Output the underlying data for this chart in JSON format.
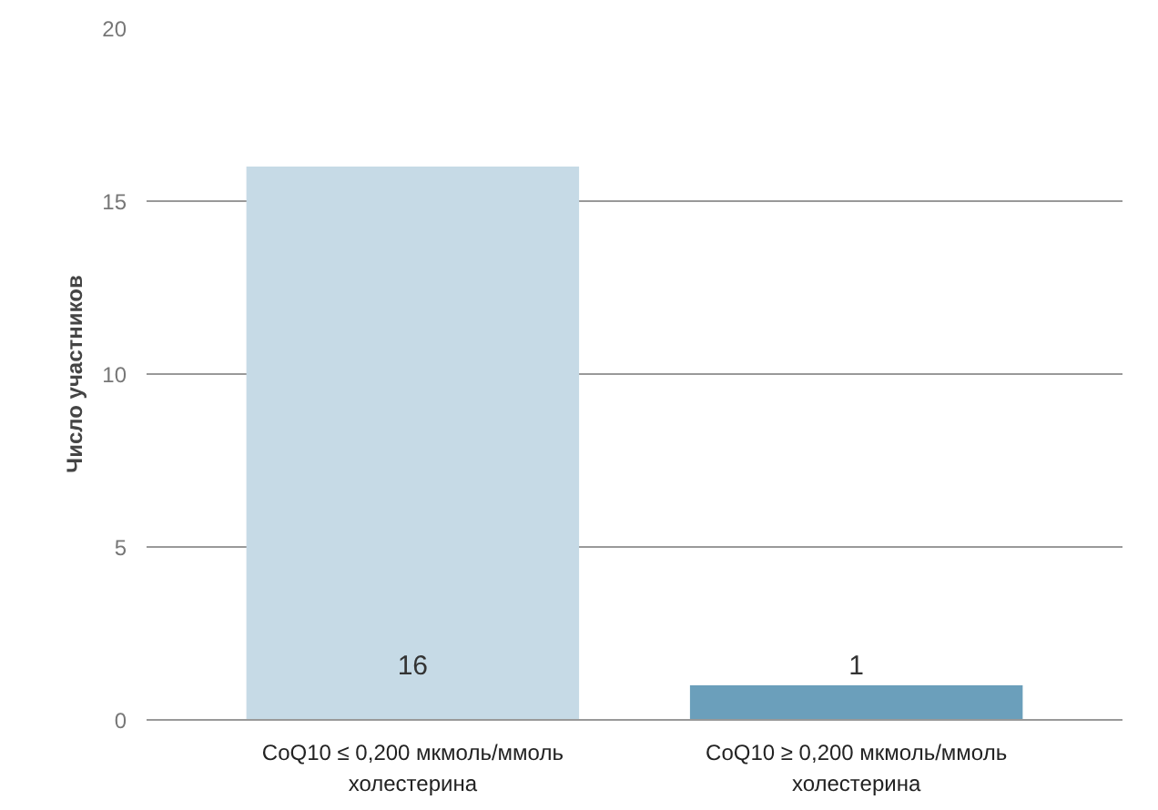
{
  "chart_data": {
    "type": "bar",
    "ylabel": "Число участников",
    "categories": [
      "CoQ10 ≤ 0,200 мкмоль/ммоль холестерина",
      "CoQ10 ≥ 0,200 мкмоль/ммоль холестерина"
    ],
    "values": [
      16,
      1
    ],
    "colors": [
      "#c6dae6",
      "#6b9fbb"
    ],
    "ylim": [
      0,
      20
    ],
    "yticks": [
      0,
      5,
      10,
      15,
      20
    ],
    "grid": "y",
    "data_labels": true
  }
}
